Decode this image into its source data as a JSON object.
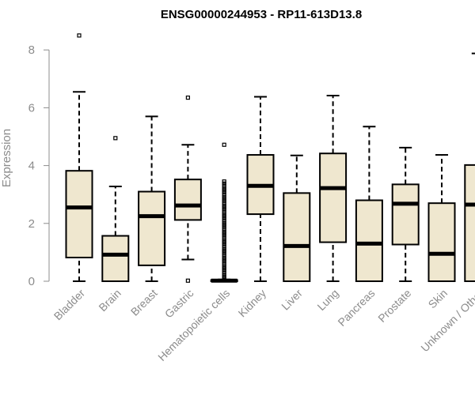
{
  "chart_data": {
    "type": "box",
    "title": "ENSG00000244953 - RP11-613D13.8",
    "xlabel": "",
    "ylabel": "Expression",
    "ylim": [
      0,
      8.5
    ],
    "yticks": [
      0,
      2,
      4,
      6,
      8
    ],
    "fill_color": "#efe7cf",
    "categories": [
      "Bladder",
      "Brain",
      "Breast",
      "Gastric",
      "Hematopoietic cells",
      "Kidney",
      "Liver",
      "Lung",
      "Pancreas",
      "Prostate",
      "Skin",
      "Unknown / Other"
    ],
    "boxes": [
      {
        "category": "Bladder",
        "whisker_low": 0,
        "q1": 0.82,
        "median": 2.55,
        "q3": 3.82,
        "whisker_high": 6.55,
        "outliers": [
          8.5
        ]
      },
      {
        "category": "Brain",
        "whisker_low": 0,
        "q1": 0.0,
        "median": 0.92,
        "q3": 1.57,
        "whisker_high": 3.28,
        "outliers": [
          4.95
        ]
      },
      {
        "category": "Breast",
        "whisker_low": 0,
        "q1": 0.55,
        "median": 2.25,
        "q3": 3.1,
        "whisker_high": 5.7,
        "outliers": []
      },
      {
        "category": "Gastric",
        "whisker_low": 0.75,
        "q1": 2.12,
        "median": 2.62,
        "q3": 3.52,
        "whisker_high": 4.72,
        "outliers": [
          6.35,
          0.02
        ]
      },
      {
        "category": "Hematopoietic cells",
        "whisker_low": 0,
        "q1": 0.0,
        "median": 0.02,
        "q3": 0.04,
        "whisker_high": 0.06,
        "outliers": [
          0.08,
          0.15,
          0.22,
          0.3,
          0.38,
          0.45,
          0.52,
          0.6,
          0.68,
          0.75,
          0.82,
          0.9,
          0.98,
          1.05,
          1.12,
          1.2,
          1.28,
          1.35,
          1.42,
          1.5,
          1.58,
          1.65,
          1.72,
          1.8,
          1.88,
          1.95,
          2.02,
          2.1,
          2.18,
          2.25,
          2.32,
          2.4,
          2.48,
          2.55,
          2.62,
          2.7,
          2.78,
          2.85,
          2.92,
          3.0,
          3.08,
          3.15,
          3.22,
          3.3,
          3.38,
          3.45,
          4.72
        ]
      },
      {
        "category": "Kidney",
        "whisker_low": 0,
        "q1": 2.32,
        "median": 3.3,
        "q3": 4.37,
        "whisker_high": 6.38,
        "outliers": []
      },
      {
        "category": "Liver",
        "whisker_low": 0,
        "q1": 0.0,
        "median": 1.22,
        "q3": 3.05,
        "whisker_high": 4.35,
        "outliers": []
      },
      {
        "category": "Lung",
        "whisker_low": 0,
        "q1": 1.35,
        "median": 3.22,
        "q3": 4.42,
        "whisker_high": 6.42,
        "outliers": []
      },
      {
        "category": "Pancreas",
        "whisker_low": 0,
        "q1": 0.0,
        "median": 1.3,
        "q3": 2.8,
        "whisker_high": 5.35,
        "outliers": []
      },
      {
        "category": "Prostate",
        "whisker_low": 0,
        "q1": 1.27,
        "median": 2.68,
        "q3": 3.35,
        "whisker_high": 4.62,
        "outliers": []
      },
      {
        "category": "Skin",
        "whisker_low": 0,
        "q1": 0.0,
        "median": 0.95,
        "q3": 2.7,
        "whisker_high": 4.37,
        "outliers": []
      },
      {
        "category": "Unknown / Other",
        "whisker_low": 0,
        "q1": 0.0,
        "median": 2.65,
        "q3": 4.02,
        "whisker_high": 7.88,
        "outliers": []
      }
    ]
  }
}
